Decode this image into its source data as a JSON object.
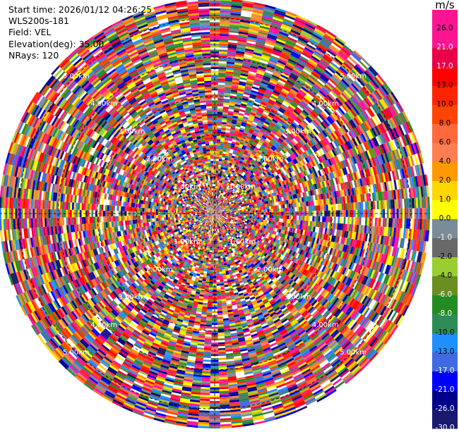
{
  "info": {
    "start_time": "Start time: 2026/01/12 04:26:25",
    "station": "WLS200s-181",
    "field": "Field: VEL",
    "elevation": "Elevation(deg): 35.00",
    "nrays": "NRays: 120"
  },
  "colorbar": {
    "unit": "m/s",
    "ticks": [
      "26.0",
      "21.0",
      "17.0",
      "13.0",
      "10.0",
      "8.0",
      "6.0",
      "4.0",
      "2.0",
      "1.0",
      "0.0",
      "-1.0",
      "-2.0",
      "-4.0",
      "-6.0",
      "-8.0",
      "-10.0",
      "-13.0",
      "-17.0",
      "-21.0",
      "-26.0",
      "-30.0"
    ],
    "colors": [
      "#ff1493",
      "#ff1493",
      "#e8004a",
      "#ff0000",
      "#ff2400",
      "#ff4500",
      "#ff6a3c",
      "#ff7f50",
      "#ff9900",
      "#ffd700",
      "#ffff00",
      "#7a8b99",
      "#696969",
      "#9acd32",
      "#6b8e23",
      "#228b22",
      "#2e8b57",
      "#1e90ff",
      "#4169e1",
      "#0000ff",
      "#00008b",
      "#191970"
    ]
  },
  "chart_data": {
    "type": "heatmap",
    "projection": "polar PPI",
    "field": "VEL",
    "units": "m/s",
    "nrays": 120,
    "range_rings_km": [
      "1.00km",
      "2.00km",
      "3.00km",
      "4.00km",
      "5.00km"
    ],
    "max_range_km": 5.5,
    "value_range": [
      -30.0,
      26.0
    ],
    "pattern": "noise-dominated velocities spanning the full colour scale"
  }
}
